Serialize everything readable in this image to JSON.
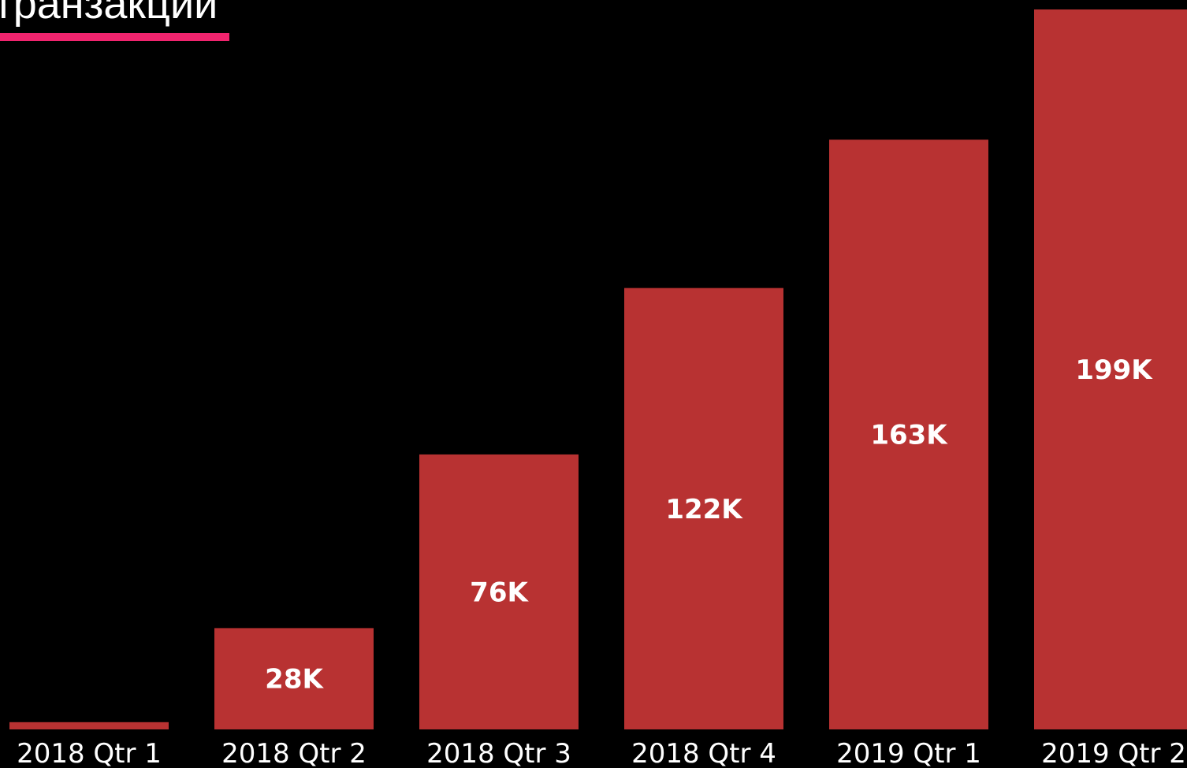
{
  "title": "транзакции",
  "colors": {
    "background": "#000000",
    "bar": "#b83232",
    "title_underline": "#f0246e",
    "text": "#ffffff"
  },
  "chart_data": {
    "type": "bar",
    "categories": [
      "2018 Qtr 1",
      "2018 Qtr 2",
      "2018 Qtr 3",
      "2018 Qtr 4",
      "2019 Qtr 1",
      "2019 Qtr 2"
    ],
    "values": [
      2,
      28,
      76,
      122,
      163,
      199
    ],
    "data_labels": [
      "",
      "28K",
      "76K",
      "122K",
      "163K",
      "199K"
    ],
    "units": "K",
    "ylim": [
      0,
      199
    ],
    "grid": false,
    "legend": "none"
  }
}
